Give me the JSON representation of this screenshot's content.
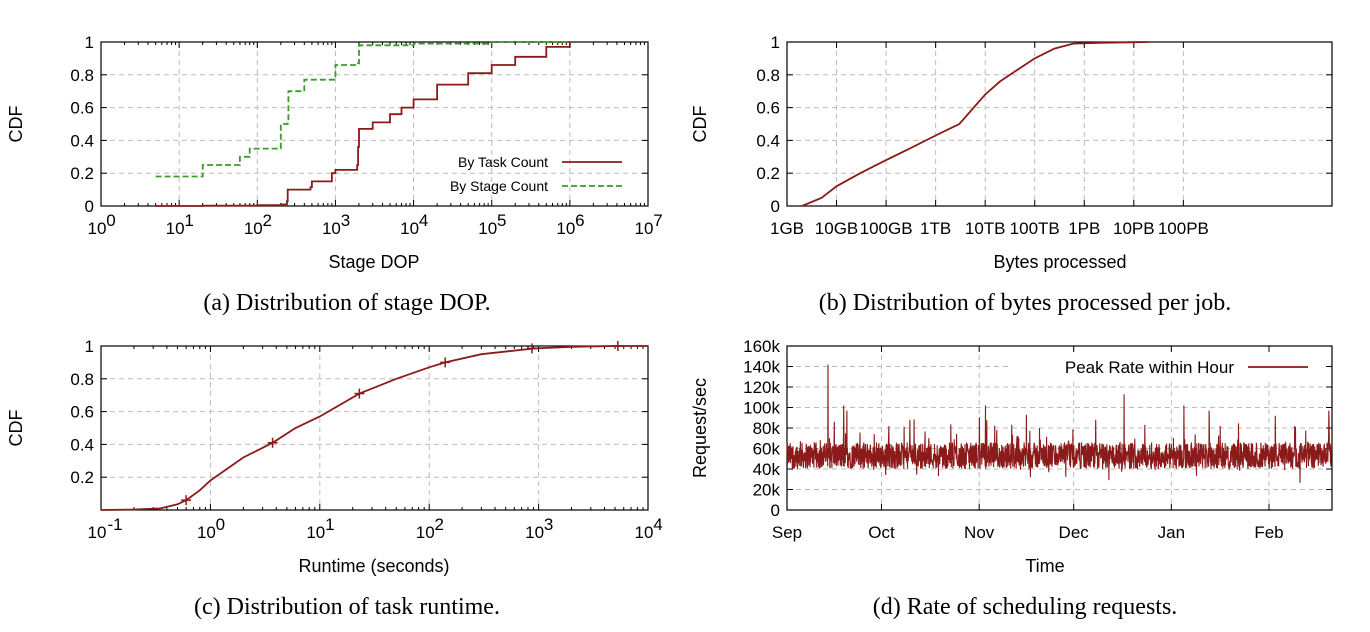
{
  "colors": {
    "red": "#8b1a1a",
    "green": "#3c9a2a",
    "grid": "#bcbcbc"
  },
  "chart_data": [
    {
      "id": "a",
      "type": "line",
      "caption": "(a) Distribution of stage DOP.",
      "xlabel": "Stage DOP",
      "ylabel": "CDF",
      "xscale": "log",
      "xlim": [
        1,
        10000000
      ],
      "ylim": [
        0,
        1
      ],
      "xticks": [
        {
          "value": 1,
          "base": "10",
          "exp": "0"
        },
        {
          "value": 10,
          "base": "10",
          "exp": "1"
        },
        {
          "value": 100,
          "base": "10",
          "exp": "2"
        },
        {
          "value": 1000,
          "base": "10",
          "exp": "3"
        },
        {
          "value": 10000,
          "base": "10",
          "exp": "4"
        },
        {
          "value": 100000,
          "base": "10",
          "exp": "5"
        },
        {
          "value": 1000000,
          "base": "10",
          "exp": "6"
        },
        {
          "value": 10000000,
          "base": "10",
          "exp": "7"
        }
      ],
      "yticks": [
        {
          "value": 0,
          "label": "0"
        },
        {
          "value": 0.2,
          "label": "0.2"
        },
        {
          "value": 0.4,
          "label": "0.4"
        },
        {
          "value": 0.6,
          "label": "0.6"
        },
        {
          "value": 0.8,
          "label": "0.8"
        },
        {
          "value": 1,
          "label": "1"
        }
      ],
      "grid": true,
      "legend_position": "bottom-right",
      "series": [
        {
          "name": "By Task Count",
          "color": "#8b1a1a",
          "dash": "solid",
          "points": [
            [
              5,
              0
            ],
            [
              20,
              0.002
            ],
            [
              100,
              0.005
            ],
            [
              200,
              0.01
            ],
            [
              240,
              0.03
            ],
            [
              245,
              0.1
            ],
            [
              480,
              0.115
            ],
            [
              500,
              0.15
            ],
            [
              900,
              0.2
            ],
            [
              1000,
              0.22
            ],
            [
              1900,
              0.25
            ],
            [
              1950,
              0.36
            ],
            [
              2000,
              0.47
            ],
            [
              3000,
              0.51
            ],
            [
              5000,
              0.56
            ],
            [
              7000,
              0.6
            ],
            [
              10000,
              0.65
            ],
            [
              20000,
              0.74
            ],
            [
              50000,
              0.81
            ],
            [
              100000,
              0.86
            ],
            [
              200000,
              0.91
            ],
            [
              500000,
              0.97
            ],
            [
              1000000,
              1.0
            ]
          ]
        },
        {
          "name": "By Stage Count",
          "color": "#3c9a2a",
          "dash": "dashed",
          "points": [
            [
              5,
              0.18
            ],
            [
              20,
              0.25
            ],
            [
              60,
              0.3
            ],
            [
              80,
              0.35
            ],
            [
              200,
              0.5
            ],
            [
              245,
              0.51
            ],
            [
              250,
              0.7
            ],
            [
              400,
              0.77
            ],
            [
              1000,
              0.86
            ],
            [
              1950,
              0.87
            ],
            [
              2000,
              0.98
            ],
            [
              10000,
              0.99
            ],
            [
              100000,
              1.0
            ],
            [
              1000000,
              1.0
            ]
          ]
        }
      ]
    },
    {
      "id": "b",
      "type": "line",
      "caption": "(b) Distribution of bytes processed per job.",
      "xlabel": "Bytes processed",
      "ylabel": "CDF",
      "xscale": "log",
      "xlim": [
        "1GB",
        "100PB"
      ],
      "ylim": [
        0,
        1
      ],
      "xticks": [
        {
          "label": "1GB"
        },
        {
          "label": "10GB"
        },
        {
          "label": "100GB"
        },
        {
          "label": "1TB"
        },
        {
          "label": "10TB"
        },
        {
          "label": "100TB"
        },
        {
          "label": "1PB"
        },
        {
          "label": "10PB"
        },
        {
          "label": "100PB"
        }
      ],
      "yticks": [
        {
          "value": 0,
          "label": "0"
        },
        {
          "value": 0.2,
          "label": "0.2"
        },
        {
          "value": 0.4,
          "label": "0.4"
        },
        {
          "value": 0.6,
          "label": "0.6"
        },
        {
          "value": 0.8,
          "label": "0.8"
        },
        {
          "value": 1,
          "label": "1"
        }
      ],
      "grid": true,
      "series": [
        {
          "color": "#8b1a1a",
          "dash": "solid",
          "points": [
            [
              "2GB",
              0.0
            ],
            [
              "5GB",
              0.05
            ],
            [
              "10GB",
              0.12
            ],
            [
              "30GB",
              0.2
            ],
            [
              "100GB",
              0.28
            ],
            [
              "300GB",
              0.35
            ],
            [
              "1TB",
              0.43
            ],
            [
              "3TB",
              0.5
            ],
            [
              "10TB",
              0.68
            ],
            [
              "20TB",
              0.76
            ],
            [
              "50TB",
              0.84
            ],
            [
              "100TB",
              0.9
            ],
            [
              "250TB",
              0.96
            ],
            [
              "600TB",
              0.99
            ],
            [
              "2PB",
              0.995
            ],
            [
              "20PB",
              1.0
            ]
          ]
        }
      ]
    },
    {
      "id": "c",
      "type": "line",
      "caption": "(c) Distribution of task runtime.",
      "xlabel": "Runtime (seconds)",
      "ylabel": "CDF",
      "xscale": "log",
      "xlim": [
        0.1,
        10000
      ],
      "ylim": [
        0,
        1
      ],
      "xticks": [
        {
          "value": 0.1,
          "base": "10",
          "exp": "-1"
        },
        {
          "value": 1,
          "base": "10",
          "exp": "0"
        },
        {
          "value": 10,
          "base": "10",
          "exp": "1"
        },
        {
          "value": 100,
          "base": "10",
          "exp": "2"
        },
        {
          "value": 1000,
          "base": "10",
          "exp": "3"
        },
        {
          "value": 10000,
          "base": "10",
          "exp": "4"
        }
      ],
      "yticks": [
        {
          "value": 0.2,
          "label": "0.2"
        },
        {
          "value": 0.4,
          "label": "0.4"
        },
        {
          "value": 0.6,
          "label": "0.6"
        },
        {
          "value": 0.8,
          "label": "0.8"
        },
        {
          "value": 1,
          "label": "1"
        }
      ],
      "grid": true,
      "series": [
        {
          "color": "#8b1a1a",
          "dash": "solid",
          "points": [
            [
              0.1,
              0.0
            ],
            [
              0.2,
              0.003
            ],
            [
              0.35,
              0.01
            ],
            [
              0.5,
              0.035
            ],
            [
              0.6,
              0.06
            ],
            [
              0.8,
              0.12
            ],
            [
              1,
              0.18
            ],
            [
              2,
              0.32
            ],
            [
              3.7,
              0.41
            ],
            [
              6,
              0.5
            ],
            [
              10,
              0.57
            ],
            [
              23,
              0.71
            ],
            [
              50,
              0.8
            ],
            [
              100,
              0.87
            ],
            [
              140,
              0.9
            ],
            [
              300,
              0.95
            ],
            [
              900,
              0.985
            ],
            [
              2000,
              0.995
            ],
            [
              5000,
              1.0
            ],
            [
              10000,
              1.0
            ]
          ]
        }
      ],
      "markers": [
        [
          0.6,
          0.06
        ],
        [
          3.7,
          0.41
        ],
        [
          23,
          0.71
        ],
        [
          140,
          0.9
        ],
        [
          870,
          0.985
        ],
        [
          5300,
          1.0
        ]
      ]
    },
    {
      "id": "d",
      "type": "line",
      "caption": "(d) Rate of scheduling requests.",
      "xlabel": "Time",
      "ylabel": "Request/sec",
      "ylim": [
        0,
        160000
      ],
      "xticks": [
        {
          "label": "Sep"
        },
        {
          "label": "Oct"
        },
        {
          "label": "Nov"
        },
        {
          "label": "Dec"
        },
        {
          "label": "Jan"
        },
        {
          "label": "Feb"
        }
      ],
      "yticks": [
        {
          "value": 0,
          "label": "0"
        },
        {
          "value": 20000,
          "label": "20k"
        },
        {
          "value": 40000,
          "label": "40k"
        },
        {
          "value": 60000,
          "label": "60k"
        },
        {
          "value": 80000,
          "label": "80k"
        },
        {
          "value": 100000,
          "label": "100k"
        },
        {
          "value": 120000,
          "label": "120k"
        },
        {
          "value": 140000,
          "label": "140k"
        },
        {
          "value": 160000,
          "label": "160k"
        }
      ],
      "grid": true,
      "legend_position": "top-right",
      "series": [
        {
          "name": "Peak Rate within Hour",
          "color": "#8b1a1a",
          "dash": "solid",
          "baseline_mean": 53000,
          "peaks": [
            {
              "date": "Sep 14",
              "value": 142000
            },
            {
              "date": "Sep 19",
              "value": 102000
            },
            {
              "date": "Sep 20",
              "value": 97000
            },
            {
              "date": "Oct 10",
              "value": 88000
            },
            {
              "date": "Nov 3",
              "value": 102000
            },
            {
              "date": "Nov 16",
              "value": 93000
            },
            {
              "date": "Dec 8",
              "value": 88000
            },
            {
              "date": "Dec 17",
              "value": 113000
            },
            {
              "date": "Jan 5",
              "value": 102000
            },
            {
              "date": "Jan 13",
              "value": 97000
            },
            {
              "date": "Feb 3",
              "value": 92000
            },
            {
              "date": "Feb 20",
              "value": 97000
            }
          ]
        }
      ]
    }
  ]
}
